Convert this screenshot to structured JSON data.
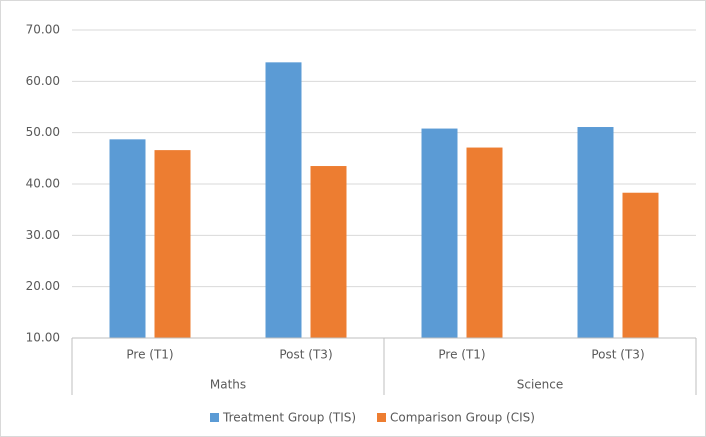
{
  "chart_data": {
    "type": "bar",
    "categories": [
      "Pre (T1)",
      "Post (T3)",
      "Pre (T1)",
      "Post (T3)"
    ],
    "groups": [
      "Maths",
      "Science"
    ],
    "series": [
      {
        "name": "Treatment Group (TIS)",
        "color": "#5b9bd5",
        "values": [
          48.7,
          63.7,
          50.8,
          51.1
        ]
      },
      {
        "name": "Comparison Group (CIS)",
        "color": "#ed7d31",
        "values": [
          46.6,
          43.5,
          47.1,
          38.3
        ]
      }
    ],
    "ylim": [
      10,
      70
    ],
    "yticks": [
      {
        "value": 10,
        "label": "10.00"
      },
      {
        "value": 20,
        "label": "20.00"
      },
      {
        "value": 30,
        "label": "30.00"
      },
      {
        "value": 40,
        "label": "40.00"
      },
      {
        "value": 50,
        "label": "50.00"
      },
      {
        "value": 60,
        "label": "60.00"
      },
      {
        "value": 70,
        "label": "70.00"
      }
    ],
    "grid": true,
    "legend": "bottom"
  }
}
